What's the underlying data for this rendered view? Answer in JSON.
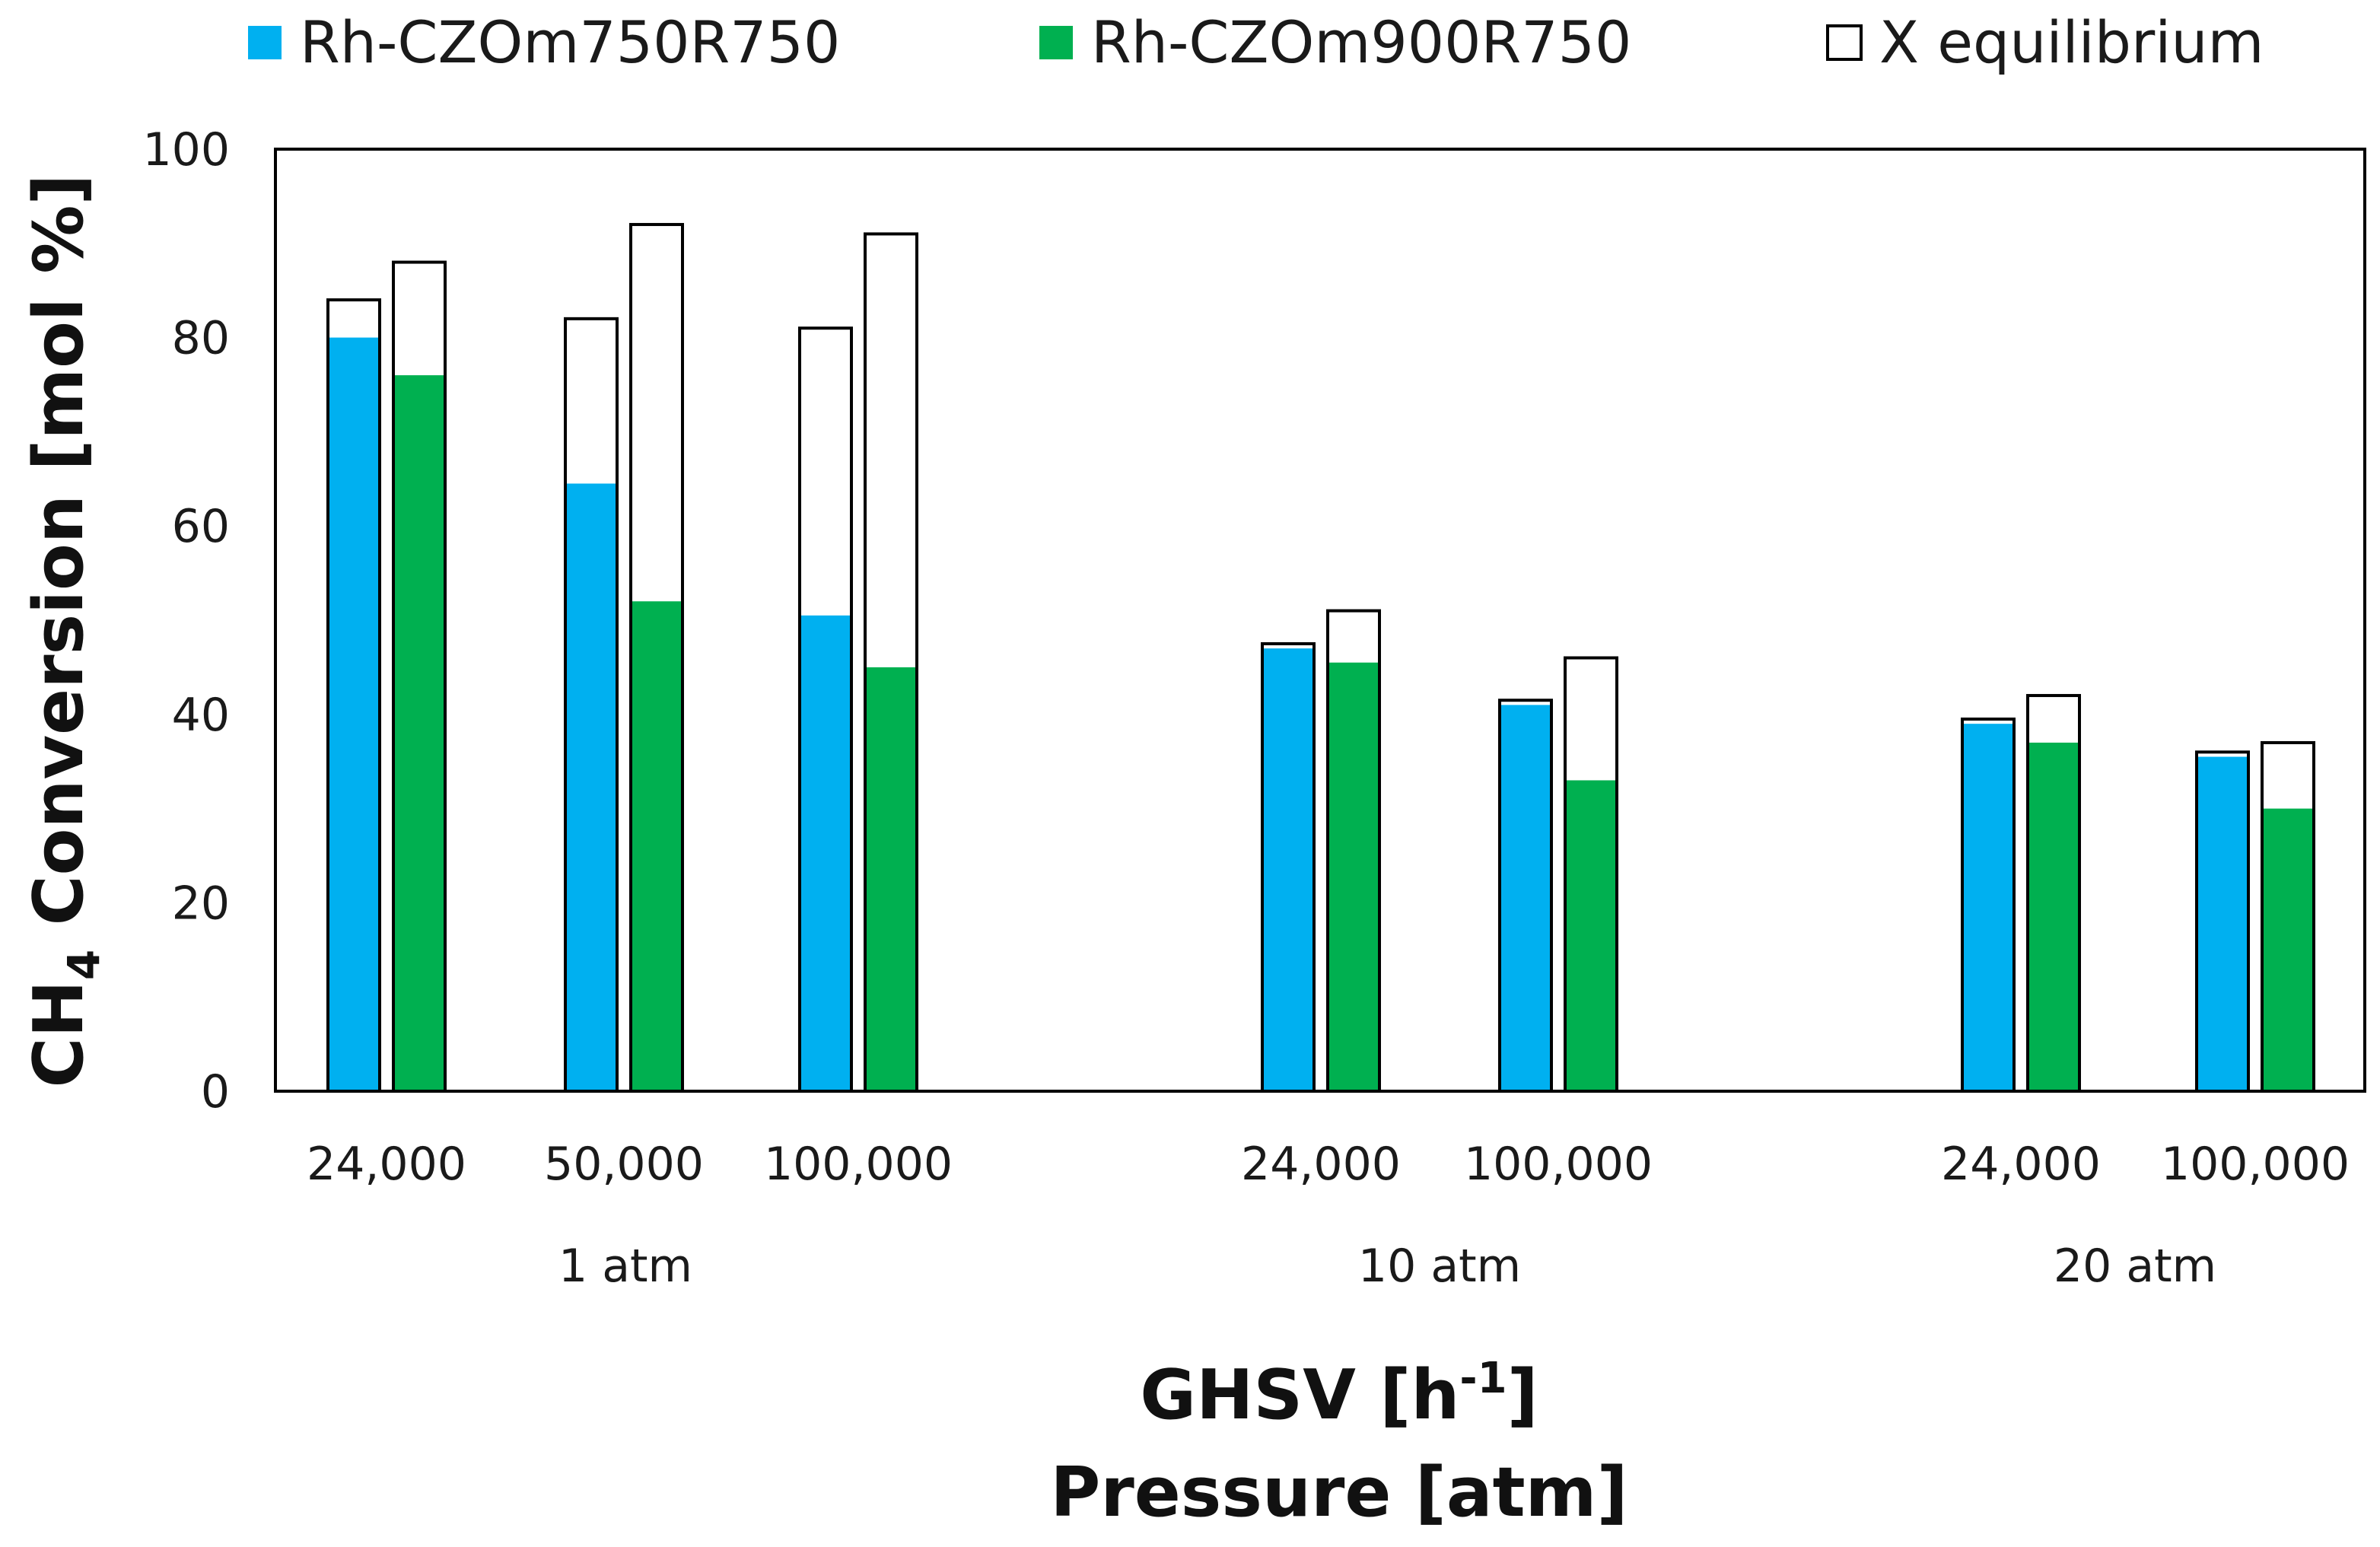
{
  "chart_data": {
    "type": "bar",
    "title": "",
    "ylabel_parts": [
      "CH",
      "4",
      " Conversion [mol %]"
    ],
    "xlabel_line1_parts": [
      "GHSV [h",
      "-1",
      "]"
    ],
    "xlabel_line2": "Pressure [atm]",
    "ylim": [
      0,
      100
    ],
    "yticks": [
      0,
      20,
      40,
      60,
      80,
      100
    ],
    "legend_position": "top",
    "grid": false,
    "colors": {
      "series1": "#00b0f0",
      "series2": "#00b050",
      "equilibrium": "#ffffff",
      "outline": "#000000"
    },
    "legend": [
      {
        "key": "series1",
        "label": "Rh-CZOm750R750"
      },
      {
        "key": "series2",
        "label": "Rh-CZOm900R750"
      },
      {
        "key": "equilibrium",
        "label": "X equilibrium"
      }
    ],
    "groups": [
      {
        "pressure": "1 atm",
        "categories": [
          {
            "ghsv": "24,000",
            "series1": 80,
            "series2": 76,
            "equilibrium": [
              84,
              88
            ]
          },
          {
            "ghsv": "50,000",
            "series1": 64.5,
            "series2": 52,
            "equilibrium": [
              82,
              92
            ]
          },
          {
            "ghsv": "100,000",
            "series1": 50.5,
            "series2": 45,
            "equilibrium": [
              81,
              91
            ]
          }
        ]
      },
      {
        "pressure": "10 atm",
        "categories": [
          {
            "ghsv": "24,000",
            "series1": 47,
            "series2": 45.5,
            "equilibrium": [
              47.5,
              51
            ]
          },
          {
            "ghsv": "100,000",
            "series1": 41,
            "series2": 33,
            "equilibrium": [
              41.5,
              46
            ]
          }
        ]
      },
      {
        "pressure": "20 atm",
        "categories": [
          {
            "ghsv": "24,000",
            "series1": 39,
            "series2": 37,
            "equilibrium": [
              39.5,
              42
            ]
          },
          {
            "ghsv": "100,000",
            "series1": 35.5,
            "series2": 30,
            "equilibrium": [
              36,
              37
            ]
          }
        ]
      }
    ]
  }
}
